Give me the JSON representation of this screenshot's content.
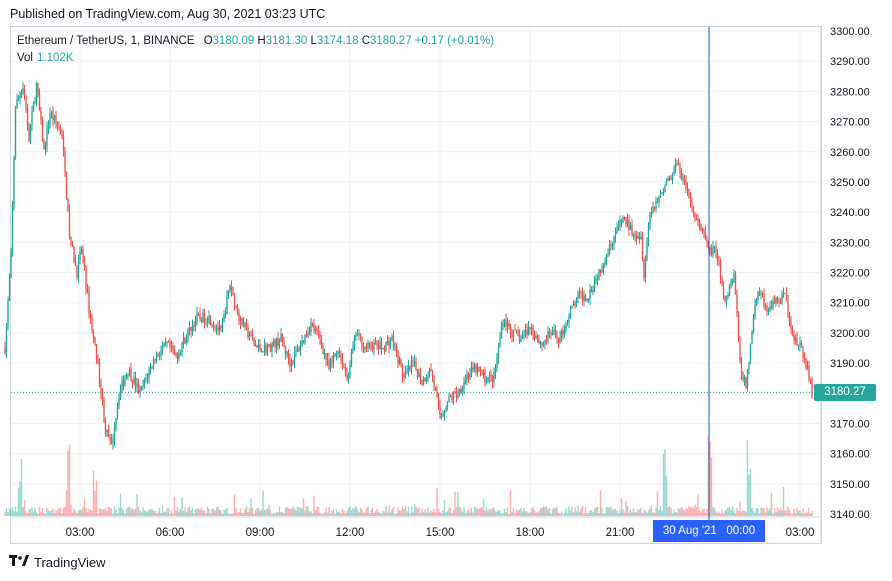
{
  "published": "Published on TradingView.com, Aug 30, 2021 03:23 UTC",
  "legend": {
    "symbol": "Ethereum / TetherUS, 1, BINANCE",
    "o_label": "O",
    "o": "3180.09",
    "h_label": "H",
    "h": "3181.30",
    "l_label": "L",
    "l": "3174.18",
    "c_label": "C",
    "c": "3180.27",
    "change": "+0.17 (+0.01%)",
    "vol_label": "Vol",
    "vol": "1.102K"
  },
  "last_price_label": "3180.27",
  "crosshair_label": "30 Aug '21   00:00",
  "footer": {
    "logo_icon": "tradingview-logo-icon",
    "brand": "TradingView"
  },
  "colors": {
    "up": "#26a69a",
    "down": "#ef5350",
    "crosshair": "#2962ff",
    "grid": "#f0f3fa"
  },
  "chart_data": {
    "type": "candlestick",
    "title": "Ethereum / TetherUS, 1, BINANCE",
    "y_ticks": [
      3140,
      3150,
      3160,
      3170,
      3180,
      3190,
      3200,
      3210,
      3220,
      3230,
      3240,
      3250,
      3260,
      3270,
      3280,
      3290,
      3300
    ],
    "ylim": [
      3138,
      3302
    ],
    "y_tick_suffix": ".00",
    "x_ticks": [
      "03:00",
      "06:00",
      "09:00",
      "12:00",
      "15:00",
      "18:00",
      "21:00",
      "00:00",
      "03:00"
    ],
    "x_tick_hours": [
      3,
      6,
      9,
      12,
      15,
      18,
      21,
      24,
      27
    ],
    "xlim_hours": [
      0.5,
      27.5
    ],
    "crosshair_hour": 24,
    "last_price": 3180.27,
    "grid": true,
    "price_path": {
      "hours": [
        0.5,
        0.7,
        0.85,
        1.1,
        1.3,
        1.55,
        1.8,
        2.0,
        2.4,
        2.65,
        2.9,
        3.05,
        3.3,
        3.5,
        3.65,
        3.85,
        4.05,
        4.3,
        4.6,
        5.0,
        5.5,
        5.9,
        6.2,
        6.6,
        6.9,
        7.3,
        7.7,
        8.0,
        8.3,
        8.6,
        8.9,
        9.3,
        9.7,
        10.0,
        10.3,
        10.7,
        11.0,
        11.3,
        11.6,
        11.9,
        12.2,
        12.5,
        12.8,
        13.1,
        13.4,
        13.8,
        14.1,
        14.4,
        14.7,
        15.0,
        15.3,
        15.6,
        15.9,
        16.2,
        16.5,
        16.8,
        17.1,
        17.4,
        17.7,
        18.0,
        18.4,
        18.7,
        19.0,
        19.3,
        19.6,
        19.9,
        20.2,
        20.5,
        20.8,
        21.1,
        21.4,
        21.7,
        21.8,
        22.0,
        22.3,
        22.6,
        22.9,
        23.2,
        23.5,
        23.8,
        24.0,
        24.2,
        24.5,
        24.8,
        25.0,
        25.2,
        25.4,
        25.6,
        25.9,
        26.2,
        26.5,
        26.8,
        27.0,
        27.2,
        27.4
      ],
      "prices": [
        3195,
        3225,
        3275,
        3282,
        3265,
        3282,
        3260,
        3273,
        3266,
        3232,
        3220,
        3228,
        3208,
        3195,
        3185,
        3168,
        3162,
        3180,
        3188,
        3180,
        3192,
        3196,
        3192,
        3200,
        3205,
        3205,
        3200,
        3216,
        3205,
        3200,
        3195,
        3195,
        3198,
        3190,
        3195,
        3203,
        3198,
        3188,
        3195,
        3185,
        3200,
        3195,
        3196,
        3195,
        3198,
        3185,
        3190,
        3184,
        3188,
        3172,
        3178,
        3180,
        3186,
        3188,
        3185,
        3185,
        3205,
        3200,
        3198,
        3202,
        3196,
        3200,
        3198,
        3206,
        3212,
        3212,
        3218,
        3225,
        3232,
        3238,
        3234,
        3232,
        3220,
        3240,
        3245,
        3250,
        3256,
        3248,
        3238,
        3232,
        3226,
        3228,
        3210,
        3220,
        3190,
        3182,
        3200,
        3215,
        3208,
        3210,
        3212,
        3198,
        3195,
        3190,
        3180.27
      ]
    },
    "volume_spikes_hours": [
      1.0,
      2.6,
      3.5,
      22.5,
      24.0,
      25.3
    ]
  }
}
